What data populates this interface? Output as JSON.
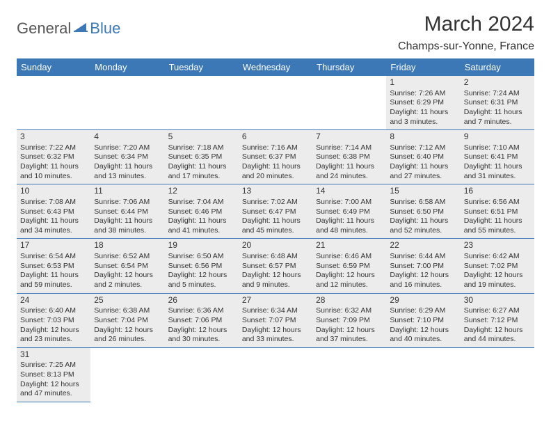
{
  "logo": {
    "text1": "General",
    "text2": "Blue"
  },
  "title": "March 2024",
  "location": "Champs-sur-Yonne, France",
  "colors": {
    "accent": "#3b78b5",
    "shade": "#ececec",
    "text": "#333333",
    "bg": "#ffffff"
  },
  "daynames": [
    "Sunday",
    "Monday",
    "Tuesday",
    "Wednesday",
    "Thursday",
    "Friday",
    "Saturday"
  ],
  "weeks": [
    [
      null,
      null,
      null,
      null,
      null,
      {
        "n": "1",
        "sr": "Sunrise: 7:26 AM",
        "ss": "Sunset: 6:29 PM",
        "dl1": "Daylight: 11 hours",
        "dl2": "and 3 minutes."
      },
      {
        "n": "2",
        "sr": "Sunrise: 7:24 AM",
        "ss": "Sunset: 6:31 PM",
        "dl1": "Daylight: 11 hours",
        "dl2": "and 7 minutes."
      }
    ],
    [
      {
        "n": "3",
        "sr": "Sunrise: 7:22 AM",
        "ss": "Sunset: 6:32 PM",
        "dl1": "Daylight: 11 hours",
        "dl2": "and 10 minutes."
      },
      {
        "n": "4",
        "sr": "Sunrise: 7:20 AM",
        "ss": "Sunset: 6:34 PM",
        "dl1": "Daylight: 11 hours",
        "dl2": "and 13 minutes."
      },
      {
        "n": "5",
        "sr": "Sunrise: 7:18 AM",
        "ss": "Sunset: 6:35 PM",
        "dl1": "Daylight: 11 hours",
        "dl2": "and 17 minutes."
      },
      {
        "n": "6",
        "sr": "Sunrise: 7:16 AM",
        "ss": "Sunset: 6:37 PM",
        "dl1": "Daylight: 11 hours",
        "dl2": "and 20 minutes."
      },
      {
        "n": "7",
        "sr": "Sunrise: 7:14 AM",
        "ss": "Sunset: 6:38 PM",
        "dl1": "Daylight: 11 hours",
        "dl2": "and 24 minutes."
      },
      {
        "n": "8",
        "sr": "Sunrise: 7:12 AM",
        "ss": "Sunset: 6:40 PM",
        "dl1": "Daylight: 11 hours",
        "dl2": "and 27 minutes."
      },
      {
        "n": "9",
        "sr": "Sunrise: 7:10 AM",
        "ss": "Sunset: 6:41 PM",
        "dl1": "Daylight: 11 hours",
        "dl2": "and 31 minutes."
      }
    ],
    [
      {
        "n": "10",
        "sr": "Sunrise: 7:08 AM",
        "ss": "Sunset: 6:43 PM",
        "dl1": "Daylight: 11 hours",
        "dl2": "and 34 minutes."
      },
      {
        "n": "11",
        "sr": "Sunrise: 7:06 AM",
        "ss": "Sunset: 6:44 PM",
        "dl1": "Daylight: 11 hours",
        "dl2": "and 38 minutes."
      },
      {
        "n": "12",
        "sr": "Sunrise: 7:04 AM",
        "ss": "Sunset: 6:46 PM",
        "dl1": "Daylight: 11 hours",
        "dl2": "and 41 minutes."
      },
      {
        "n": "13",
        "sr": "Sunrise: 7:02 AM",
        "ss": "Sunset: 6:47 PM",
        "dl1": "Daylight: 11 hours",
        "dl2": "and 45 minutes."
      },
      {
        "n": "14",
        "sr": "Sunrise: 7:00 AM",
        "ss": "Sunset: 6:49 PM",
        "dl1": "Daylight: 11 hours",
        "dl2": "and 48 minutes."
      },
      {
        "n": "15",
        "sr": "Sunrise: 6:58 AM",
        "ss": "Sunset: 6:50 PM",
        "dl1": "Daylight: 11 hours",
        "dl2": "and 52 minutes."
      },
      {
        "n": "16",
        "sr": "Sunrise: 6:56 AM",
        "ss": "Sunset: 6:51 PM",
        "dl1": "Daylight: 11 hours",
        "dl2": "and 55 minutes."
      }
    ],
    [
      {
        "n": "17",
        "sr": "Sunrise: 6:54 AM",
        "ss": "Sunset: 6:53 PM",
        "dl1": "Daylight: 11 hours",
        "dl2": "and 59 minutes."
      },
      {
        "n": "18",
        "sr": "Sunrise: 6:52 AM",
        "ss": "Sunset: 6:54 PM",
        "dl1": "Daylight: 12 hours",
        "dl2": "and 2 minutes."
      },
      {
        "n": "19",
        "sr": "Sunrise: 6:50 AM",
        "ss": "Sunset: 6:56 PM",
        "dl1": "Daylight: 12 hours",
        "dl2": "and 5 minutes."
      },
      {
        "n": "20",
        "sr": "Sunrise: 6:48 AM",
        "ss": "Sunset: 6:57 PM",
        "dl1": "Daylight: 12 hours",
        "dl2": "and 9 minutes."
      },
      {
        "n": "21",
        "sr": "Sunrise: 6:46 AM",
        "ss": "Sunset: 6:59 PM",
        "dl1": "Daylight: 12 hours",
        "dl2": "and 12 minutes."
      },
      {
        "n": "22",
        "sr": "Sunrise: 6:44 AM",
        "ss": "Sunset: 7:00 PM",
        "dl1": "Daylight: 12 hours",
        "dl2": "and 16 minutes."
      },
      {
        "n": "23",
        "sr": "Sunrise: 6:42 AM",
        "ss": "Sunset: 7:02 PM",
        "dl1": "Daylight: 12 hours",
        "dl2": "and 19 minutes."
      }
    ],
    [
      {
        "n": "24",
        "sr": "Sunrise: 6:40 AM",
        "ss": "Sunset: 7:03 PM",
        "dl1": "Daylight: 12 hours",
        "dl2": "and 23 minutes."
      },
      {
        "n": "25",
        "sr": "Sunrise: 6:38 AM",
        "ss": "Sunset: 7:04 PM",
        "dl1": "Daylight: 12 hours",
        "dl2": "and 26 minutes."
      },
      {
        "n": "26",
        "sr": "Sunrise: 6:36 AM",
        "ss": "Sunset: 7:06 PM",
        "dl1": "Daylight: 12 hours",
        "dl2": "and 30 minutes."
      },
      {
        "n": "27",
        "sr": "Sunrise: 6:34 AM",
        "ss": "Sunset: 7:07 PM",
        "dl1": "Daylight: 12 hours",
        "dl2": "and 33 minutes."
      },
      {
        "n": "28",
        "sr": "Sunrise: 6:32 AM",
        "ss": "Sunset: 7:09 PM",
        "dl1": "Daylight: 12 hours",
        "dl2": "and 37 minutes."
      },
      {
        "n": "29",
        "sr": "Sunrise: 6:29 AM",
        "ss": "Sunset: 7:10 PM",
        "dl1": "Daylight: 12 hours",
        "dl2": "and 40 minutes."
      },
      {
        "n": "30",
        "sr": "Sunrise: 6:27 AM",
        "ss": "Sunset: 7:12 PM",
        "dl1": "Daylight: 12 hours",
        "dl2": "and 44 minutes."
      }
    ],
    [
      {
        "n": "31",
        "sr": "Sunrise: 7:25 AM",
        "ss": "Sunset: 8:13 PM",
        "dl1": "Daylight: 12 hours",
        "dl2": "and 47 minutes."
      },
      null,
      null,
      null,
      null,
      null,
      null
    ]
  ]
}
